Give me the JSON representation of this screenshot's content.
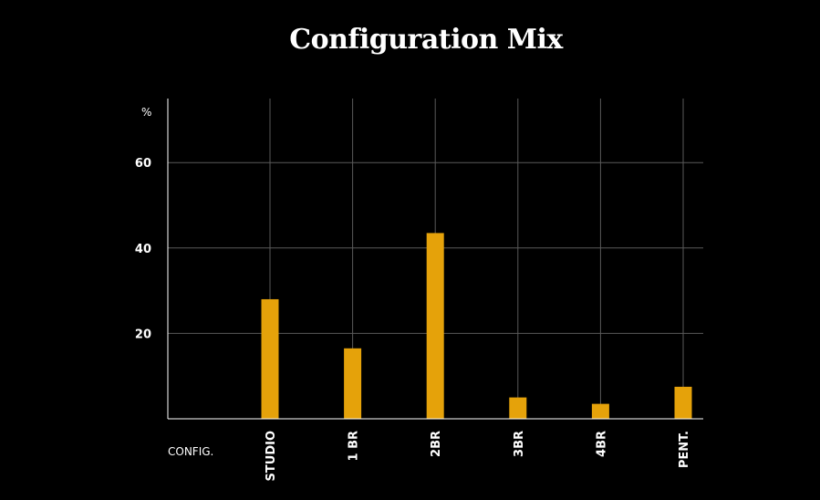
{
  "chart_data": {
    "type": "bar",
    "title": "Configuration Mix",
    "xlabel": "CONFIG.",
    "ylabel": "%",
    "categories": [
      "STUDIO",
      "1 BR",
      "2BR",
      "3BR",
      "4BR",
      "PENT."
    ],
    "values": [
      28,
      16.5,
      43.5,
      5,
      3.5,
      7.5
    ],
    "ylim": [
      0,
      75
    ],
    "yticks": [
      20,
      40,
      60
    ],
    "grid": true,
    "legend": "none"
  },
  "colors": {
    "background": "#000000",
    "bar": "#E5A20A",
    "grid": "#5a5a5a",
    "axis": "#ffffff",
    "text": "#ffffff"
  }
}
